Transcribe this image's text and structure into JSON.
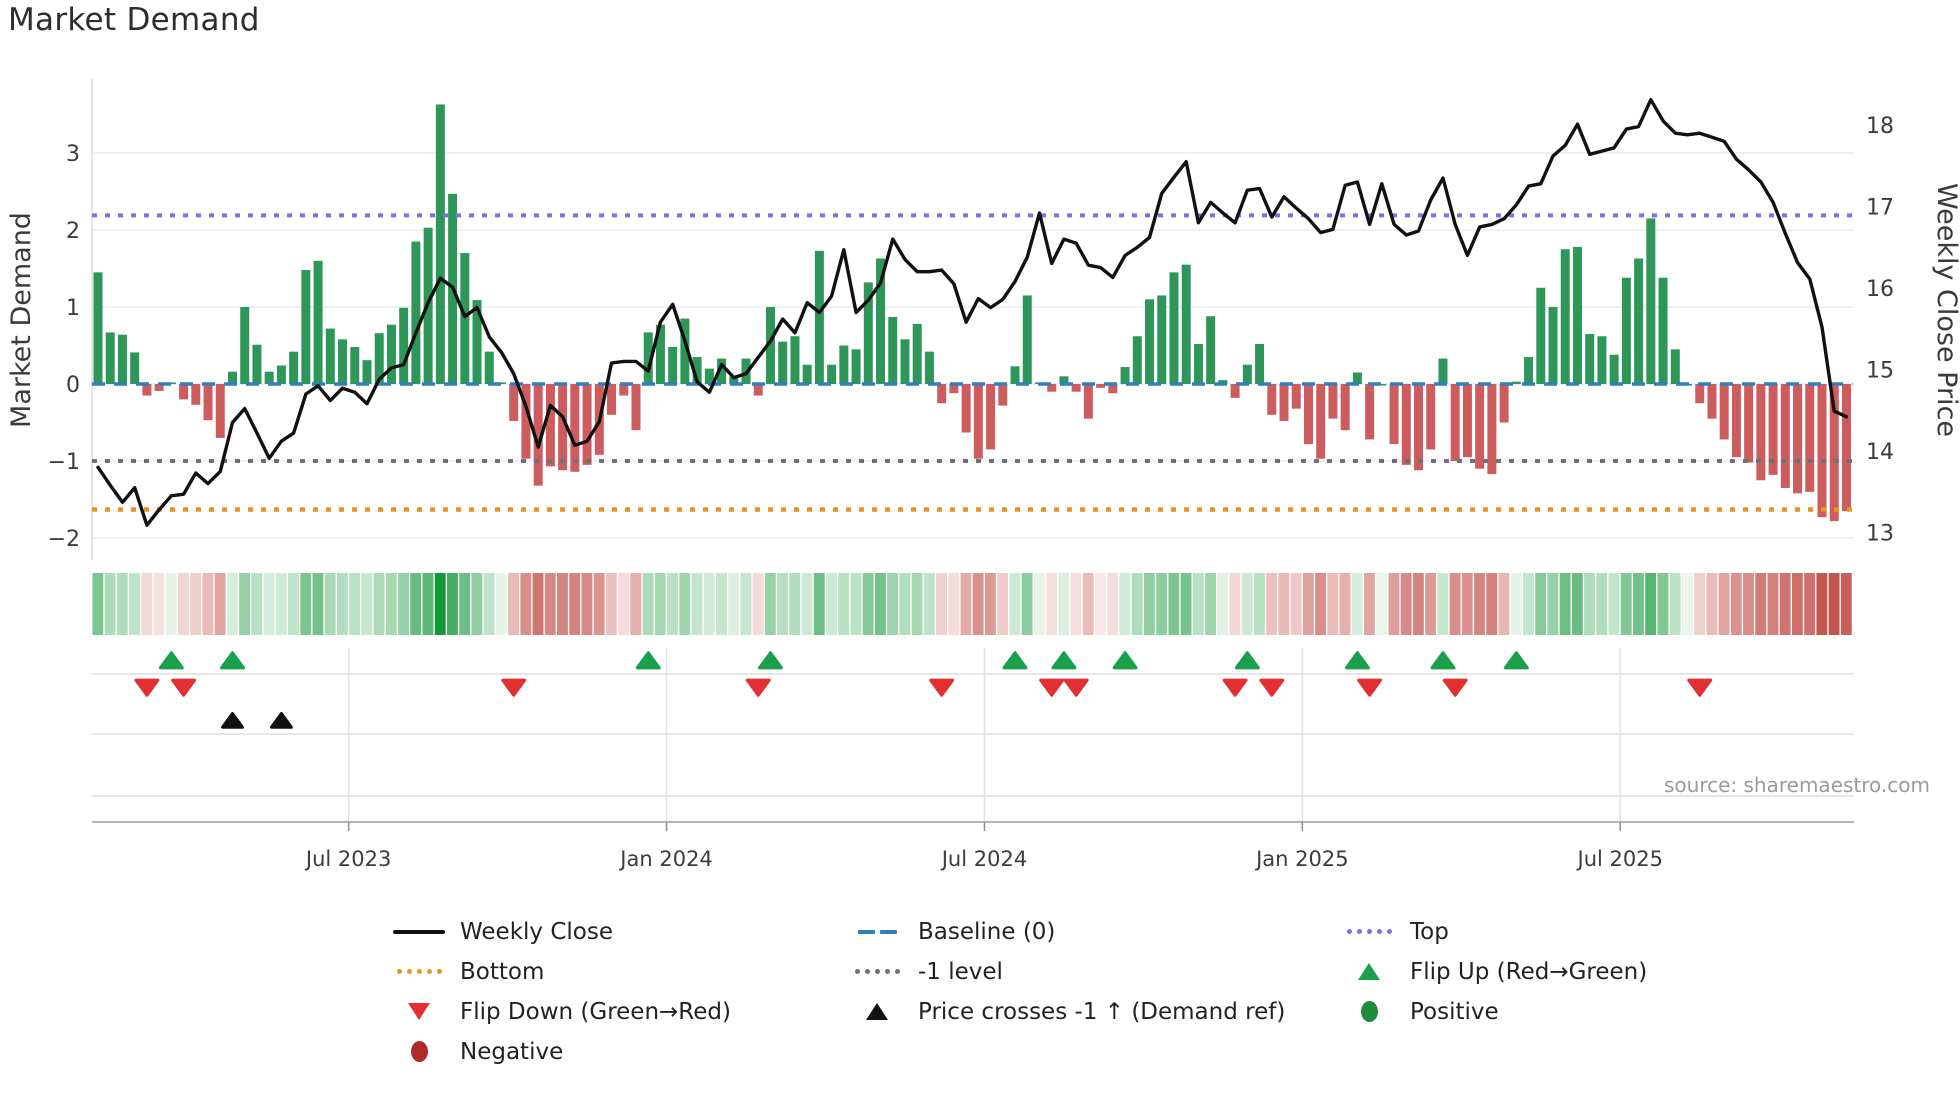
{
  "title": "Market Demand",
  "source": "source: sharemaestro.com",
  "left_axis": {
    "title": "Market Demand",
    "ticks": [
      "3",
      "2",
      "1",
      "0",
      "−1",
      "−2"
    ],
    "tick_values": [
      3,
      2,
      1,
      0,
      -1,
      -2
    ]
  },
  "right_axis": {
    "title": "Weekly Close Price",
    "ticks": [
      "18",
      "17",
      "16",
      "15",
      "14",
      "13"
    ],
    "tick_values": [
      18,
      17,
      16,
      15,
      14,
      13
    ]
  },
  "x_axis": {
    "ticks": [
      {
        "label": "Jul 2023",
        "week": 20.5
      },
      {
        "label": "Jan 2024",
        "week": 46.5
      },
      {
        "label": "Jul 2024",
        "week": 72.5
      },
      {
        "label": "Jan 2025",
        "week": 98.5
      },
      {
        "label": "Jul 2025",
        "week": 124.5
      }
    ]
  },
  "legend": {
    "items": [
      {
        "label": "Weekly Close",
        "marker": "line",
        "color": "#111111"
      },
      {
        "label": "Baseline (0)",
        "marker": "dashes",
        "color": "#2F7FC1"
      },
      {
        "label": "Top",
        "marker": "dots",
        "color": "#7C6FE8"
      },
      {
        "label": "Bottom",
        "marker": "dots",
        "color": "#E8941F"
      },
      {
        "label": "-1 level",
        "marker": "dots",
        "color": "#70707A"
      },
      {
        "label": "Flip Up (Red→Green)",
        "marker": "triangle-up",
        "color": "#1AA04A"
      },
      {
        "label": "Flip Down (Green→Red)",
        "marker": "triangle-down",
        "color": "#E23030"
      },
      {
        "label": "Price crosses -1 ↑ (Demand ref)",
        "marker": "triangle-up",
        "color": "#111111"
      },
      {
        "label": "Positive",
        "marker": "circle",
        "color": "#1E8C3B"
      },
      {
        "label": "Negative",
        "marker": "circle",
        "color": "#B02A2A"
      }
    ]
  },
  "chart_data": {
    "type": "combo-bar-line-heatmap",
    "x_unit": "week",
    "x_start_label": "Feb 2023",
    "x_end_label": "Nov 2025",
    "demand_ylim": [
      -2.3,
      3.95
    ],
    "price_ylim": [
      12.95,
      18.55
    ],
    "levels": {
      "top": 2.19,
      "baseline": 0,
      "minus1": -1,
      "bottom": -1.63
    },
    "demand": [
      1.45,
      0.67,
      0.64,
      0.41,
      -0.15,
      -0.09,
      0.02,
      -0.2,
      -0.27,
      -0.47,
      -0.7,
      0.16,
      1.0,
      0.51,
      0.16,
      0.24,
      0.42,
      1.48,
      1.6,
      0.72,
      0.58,
      0.48,
      0.31,
      0.66,
      0.77,
      0.99,
      1.85,
      2.03,
      3.63,
      2.47,
      1.7,
      1.09,
      0.42,
      0.02,
      -0.48,
      -0.97,
      -1.32,
      -1.07,
      -1.12,
      -1.14,
      -1.05,
      -0.92,
      -0.4,
      -0.15,
      -0.6,
      0.67,
      0.77,
      0.48,
      0.85,
      0.35,
      0.2,
      0.33,
      0.1,
      0.33,
      -0.15,
      1.0,
      0.55,
      0.62,
      0.25,
      1.73,
      0.25,
      0.5,
      0.45,
      1.32,
      1.63,
      0.87,
      0.58,
      0.78,
      0.42,
      -0.25,
      -0.12,
      -0.63,
      -0.97,
      -0.85,
      -0.28,
      0.23,
      1.15,
      0.02,
      -0.1,
      0.1,
      -0.1,
      -0.45,
      -0.05,
      -0.12,
      0.22,
      0.62,
      1.1,
      1.15,
      1.45,
      1.55,
      0.52,
      0.88,
      0.05,
      -0.18,
      0.25,
      0.52,
      -0.4,
      -0.48,
      -0.32,
      -0.78,
      -0.97,
      -0.45,
      -0.6,
      0.15,
      -0.72,
      0.0,
      -0.78,
      -1.05,
      -1.12,
      -0.85,
      0.33,
      -1.0,
      -0.95,
      -1.1,
      -1.17,
      -0.5,
      0.03,
      0.35,
      1.25,
      1.0,
      1.75,
      1.78,
      0.65,
      0.62,
      0.38,
      1.38,
      1.63,
      2.15,
      1.38,
      0.45,
      0.0,
      -0.25,
      -0.45,
      -0.72,
      -0.95,
      -1.02,
      -1.25,
      -1.18,
      -1.35,
      -1.42,
      -1.4,
      -1.73,
      -1.78,
      -1.65
    ],
    "price": [
      13.8,
      13.58,
      13.37,
      13.55,
      13.09,
      13.28,
      13.45,
      13.47,
      13.73,
      13.6,
      13.75,
      14.35,
      14.52,
      14.22,
      13.91,
      14.12,
      14.22,
      14.7,
      14.8,
      14.62,
      14.77,
      14.72,
      14.58,
      14.88,
      15.02,
      15.06,
      15.45,
      15.82,
      16.12,
      16.01,
      15.65,
      15.76,
      15.4,
      15.21,
      14.95,
      14.55,
      14.05,
      14.56,
      14.42,
      14.07,
      14.12,
      14.36,
      15.08,
      15.1,
      15.1,
      14.98,
      15.58,
      15.8,
      15.35,
      14.85,
      14.72,
      15.06,
      14.9,
      14.95,
      15.15,
      15.35,
      15.62,
      15.45,
      15.82,
      15.7,
      15.9,
      16.47,
      15.7,
      15.85,
      16.06,
      16.6,
      16.35,
      16.2,
      16.2,
      16.22,
      16.05,
      15.58,
      15.87,
      15.76,
      15.86,
      16.08,
      16.38,
      16.92,
      16.3,
      16.6,
      16.55,
      16.28,
      16.25,
      16.13,
      16.4,
      16.5,
      16.62,
      17.16,
      17.36,
      17.55,
      16.8,
      17.05,
      16.92,
      16.8,
      17.2,
      17.22,
      16.87,
      17.12,
      16.98,
      16.85,
      16.68,
      16.72,
      17.26,
      17.3,
      16.78,
      17.28,
      16.78,
      16.65,
      16.7,
      17.08,
      17.35,
      16.78,
      16.4,
      16.75,
      16.78,
      16.85,
      17.02,
      17.25,
      17.28,
      17.62,
      17.75,
      18.01,
      17.64,
      17.68,
      17.72,
      17.95,
      17.98,
      18.31,
      18.05,
      17.9,
      17.88,
      17.9,
      17.85,
      17.8,
      17.58,
      17.45,
      17.3,
      17.05,
      16.67,
      16.31,
      16.11,
      15.52,
      14.49,
      14.42
    ],
    "markers": {
      "flip_up_weeks": [
        6,
        11,
        45,
        55,
        75,
        79,
        84,
        94,
        103,
        110,
        116
      ],
      "flip_down_weeks": [
        4,
        7,
        34,
        54,
        69,
        78,
        80,
        93,
        96,
        104,
        111,
        131
      ],
      "price_cross_weeks": [
        11,
        15
      ]
    },
    "colors": {
      "bar_positive": "#2E9658",
      "bar_negative": "#CC5C5E",
      "price_line": "#111111",
      "baseline": "#2F7FC1",
      "top_line": "#7C6FE8",
      "bottom_line": "#E8941F",
      "minus1_line": "#70707A",
      "flip_up": "#1AA04A",
      "flip_down": "#E23030",
      "price_cross": "#111111",
      "heat_pos_low": "#eaf6ec",
      "heat_pos_high": "#119638",
      "heat_neg_low": "#fcefee",
      "heat_neg_high": "#c2544f",
      "grid": "#e8ecf1",
      "grid_lower": "#dddddd",
      "axis_line": "#b5b5b5"
    }
  }
}
